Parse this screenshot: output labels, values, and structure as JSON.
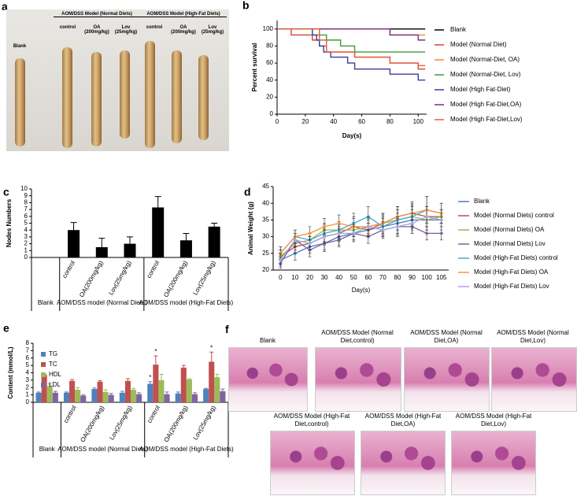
{
  "photo": {
    "panel": "a",
    "blank": "Blank",
    "groups": [
      {
        "label": "AOM/DSS Model (Normal Diets)",
        "columns": [
          "control",
          "OA (200mg/kg)",
          "Lov (25mg/kg)"
        ]
      },
      {
        "label": "AOM/DSS Model (High-Fat Diets)",
        "columns": [
          "control",
          "OA (200mg/kg)",
          "Lov (25mg/kg)"
        ]
      }
    ]
  },
  "histology": {
    "panel": "f",
    "images": [
      "Blank",
      "AOM/DSS Model (Normal Diet,control)",
      "AOM/DSS Model (Normal Diet,OA)",
      "AOM/DSS Model (Normal Diet,Lov)",
      "AOM/DSS Model (High-Fat Diet,control)",
      "AOM/DSS Model (High-Fat Diet,OA)",
      "AOM/DSS Model (High-Fat Diet,Lov)"
    ]
  },
  "chart_data": [
    {
      "type": "step",
      "panel": "b",
      "ylabel": "Percent survival",
      "xlabel": "Day(s)",
      "xlim": [
        0,
        106
      ],
      "xticks": [
        0,
        20,
        40,
        60,
        80,
        100
      ],
      "ylim": [
        0,
        110
      ],
      "yticks": [
        0,
        20,
        40,
        60,
        80,
        100
      ],
      "series": [
        {
          "name": "Blank",
          "color": "#000000",
          "x": [
            0,
            105
          ],
          "values": [
            100,
            100
          ]
        },
        {
          "name": "Model (Normal Diet)",
          "color": "#d9403a",
          "x": [
            0,
            10,
            25,
            30,
            35,
            55,
            80,
            100,
            105
          ],
          "values": [
            100,
            93,
            87,
            80,
            73,
            67,
            60,
            53,
            53
          ]
        },
        {
          "name": "Model (Normal-Diet, OA)",
          "color": "#f08a3c",
          "x": [
            0,
            80,
            105
          ],
          "values": [
            100,
            93,
            93
          ]
        },
        {
          "name": "Model (Normal-Diet, Lov)",
          "color": "#3f9a3a",
          "x": [
            0,
            25,
            35,
            45,
            55,
            105
          ],
          "values": [
            100,
            93,
            87,
            80,
            73,
            73
          ]
        },
        {
          "name": "Model (High Fat-Diet)",
          "color": "#3b3b9e",
          "x": [
            0,
            25,
            28,
            30,
            33,
            38,
            50,
            55,
            80,
            100,
            105
          ],
          "values": [
            100,
            93,
            87,
            80,
            73,
            67,
            60,
            53,
            47,
            40,
            40
          ]
        },
        {
          "name": "Model (High Fat-Diet,OA)",
          "color": "#7a2f80",
          "x": [
            0,
            80,
            100,
            105
          ],
          "values": [
            100,
            93,
            87,
            87
          ]
        },
        {
          "name": "Model (High Fat-Diet,Lov)",
          "color": "#e0603a",
          "x": [
            0,
            30,
            35,
            55,
            80,
            100,
            105
          ],
          "values": [
            100,
            87,
            73,
            67,
            60,
            57,
            57
          ]
        }
      ]
    },
    {
      "type": "bar",
      "panel": "c",
      "ylabel": "Nodes Numbers",
      "ylim": [
        0,
        10
      ],
      "yticks": [
        0,
        1,
        2,
        3,
        4,
        5,
        6,
        7,
        8,
        9,
        10
      ],
      "color": "#000000",
      "categories": [
        null,
        "control",
        "OA(200mg/kg)",
        "Lov(25mg/kg)",
        "control",
        "OA(200mg/kg)",
        "Lov(25mg/kg)"
      ],
      "groups": [
        {
          "label": "Blank",
          "count": 1
        },
        {
          "label": "AOM/DSS model (Normal Diets)",
          "count": 3
        },
        {
          "label": "AOM/DSS model (High-Fat Diets)",
          "count": 3
        }
      ],
      "values": [
        0,
        4,
        1.5,
        2,
        7.3,
        2.5,
        4.5
      ],
      "errors": [
        0,
        1.1,
        1.3,
        1,
        1.6,
        1,
        0.5
      ]
    },
    {
      "type": "line",
      "panel": "d",
      "ylabel": "Animal Weight (g)",
      "xlabel": "Day(s)",
      "categories": [
        "0",
        "10",
        "20",
        "30",
        "40",
        "50",
        "60",
        "70",
        "80",
        "90",
        "100",
        "105"
      ],
      "ylim": [
        20,
        45
      ],
      "yticks": [
        20,
        25,
        30,
        35,
        40,
        45
      ],
      "series": [
        {
          "name": "Blank",
          "color": "#4a7ebb",
          "values": [
            23,
            25,
            27,
            28,
            30,
            31,
            32,
            33,
            34,
            35,
            35,
            35
          ],
          "errors": [
            1.5,
            2,
            2,
            2,
            2.5,
            2,
            2,
            2.5,
            3,
            3,
            3,
            2
          ]
        },
        {
          "name": "Model (Normal Diets) control",
          "color": "#be4b48",
          "values": [
            24,
            27,
            28,
            30,
            31,
            33,
            32,
            34,
            36,
            37,
            36,
            36
          ],
          "errors": [
            2,
            2,
            2,
            2.5,
            2.5,
            3,
            2,
            3,
            3,
            3,
            3,
            2
          ]
        },
        {
          "name": "Model (Normal Diets) OA",
          "color": "#98b954",
          "values": [
            24,
            28,
            29,
            32,
            32,
            32,
            33,
            34,
            35,
            36,
            35,
            36
          ],
          "errors": [
            2,
            2,
            2,
            2,
            2,
            2,
            2,
            2.5,
            3,
            3,
            3,
            2
          ]
        },
        {
          "name": "Model (Normal Diets) Lov",
          "color": "#7d60a0",
          "values": [
            22,
            29,
            26,
            28,
            29,
            31,
            30,
            32,
            33,
            33,
            31,
            31
          ],
          "errors": [
            1.5,
            2,
            2,
            2.5,
            2,
            2,
            2,
            2,
            2.5,
            2,
            2,
            2
          ]
        },
        {
          "name": "Model (High-Fat Diets) control",
          "color": "#46aac5",
          "values": [
            25,
            30,
            29,
            31,
            32,
            34,
            36,
            33,
            35,
            36,
            38,
            37
          ],
          "errors": [
            2,
            2,
            2,
            2.5,
            2.5,
            3,
            3,
            3,
            3,
            3.5,
            4,
            3
          ]
        },
        {
          "name": "Model (High-Fat Diets) OA",
          "color": "#f69240",
          "values": [
            25,
            30,
            31,
            33,
            34,
            33,
            33,
            34,
            36,
            37,
            38,
            37
          ],
          "errors": [
            2,
            2,
            2,
            2.5,
            2.5,
            2.5,
            3,
            3,
            3,
            3.5,
            4,
            3
          ]
        },
        {
          "name": "Model (High-Fat Diets) Lov",
          "color": "#a5a5e0",
          "values": [
            23,
            29,
            28,
            30,
            31,
            31,
            33,
            32,
            33,
            34,
            36,
            35
          ],
          "errors": [
            2,
            2,
            2,
            2,
            2,
            2.5,
            2.5,
            2.5,
            3,
            3,
            3,
            3
          ]
        }
      ]
    },
    {
      "type": "bar",
      "panel": "e",
      "ylabel": "Content (mmol/L)",
      "ylim": [
        0,
        8
      ],
      "yticks": [
        0,
        1,
        2,
        3,
        4,
        5,
        6,
        7,
        8
      ],
      "categories": [
        null,
        "control",
        "OA(200mg/kg)",
        "Lov(25mg/kg)",
        "control",
        "OA(200mg/kg)",
        "Lov(25mg/kg)"
      ],
      "groups": [
        {
          "label": "Blank",
          "count": 1
        },
        {
          "label": "AOM/DSS model (Normal Diets)",
          "count": 3
        },
        {
          "label": "AOM/DSS model (High-Fat Diets)",
          "count": 3
        }
      ],
      "series": [
        {
          "name": "TG",
          "color": "#4f81bd",
          "values": [
            1.3,
            1.3,
            1.8,
            1.3,
            2.5,
            1.2,
            1.8
          ],
          "errors": [
            0.1,
            0.1,
            0.15,
            0.2,
            0.3,
            0.2,
            0.1
          ],
          "annotations": [
            null,
            null,
            null,
            null,
            "*",
            null,
            null
          ]
        },
        {
          "name": "TC",
          "color": "#c0504d",
          "values": [
            3.7,
            2.9,
            2.8,
            2.9,
            5.1,
            4.7,
            5.5
          ],
          "errors": [
            0.1,
            0.2,
            0.15,
            0.3,
            1.2,
            0.3,
            1.3
          ],
          "annotations": [
            null,
            null,
            null,
            null,
            "*",
            null,
            "*"
          ]
        },
        {
          "name": "HDL",
          "color": "#9bbb59",
          "values": [
            2.2,
            1.7,
            1.4,
            1.7,
            3.0,
            3.1,
            3.4
          ],
          "errors": [
            0.3,
            0.3,
            0.3,
            0.2,
            0.8,
            0.1,
            0.4
          ],
          "annotations": [
            null,
            null,
            null,
            null,
            null,
            null,
            null
          ]
        },
        {
          "name": "LDL",
          "color": "#8064a2",
          "values": [
            1.3,
            0.9,
            1.0,
            1.1,
            1.1,
            1.1,
            1.5
          ],
          "errors": [
            0.2,
            0.1,
            0.2,
            0.2,
            0.3,
            0.2,
            0.3
          ],
          "annotations": [
            null,
            null,
            null,
            null,
            null,
            null,
            null
          ]
        }
      ]
    }
  ]
}
